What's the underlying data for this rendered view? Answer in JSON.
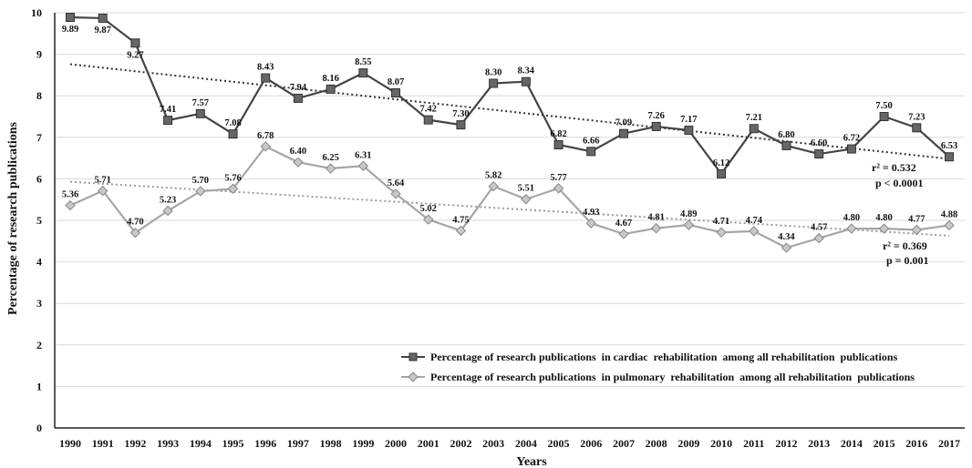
{
  "chart_data": {
    "type": "line",
    "xlabel": "Years",
    "ylabel": "Percentage of research publications",
    "ylim": [
      0,
      10
    ],
    "yticks": [
      "0",
      "1",
      "2",
      "3",
      "4",
      "5",
      "6",
      "7",
      "8",
      "9",
      "10"
    ],
    "grid": "horizontal",
    "legend_position": "bottom-right",
    "x": [
      "1990",
      "1991",
      "1992",
      "1993",
      "1994",
      "1995",
      "1996",
      "1997",
      "1998",
      "1999",
      "2000",
      "2001",
      "2002",
      "2003",
      "2004",
      "2005",
      "2006",
      "2007",
      "2008",
      "2009",
      "2010",
      "2011",
      "2012",
      "2013",
      "2014",
      "2015",
      "2016",
      "2017"
    ],
    "series": [
      {
        "name": "Percentage of research publications  in cardiac  rehabilitation  among all rehabilitation  publications",
        "color": "#444444",
        "marker": "square",
        "values": [
          9.89,
          9.87,
          9.27,
          7.41,
          7.57,
          7.08,
          8.43,
          7.94,
          8.16,
          8.55,
          8.07,
          7.42,
          7.3,
          8.3,
          8.34,
          6.82,
          6.66,
          7.09,
          7.26,
          7.17,
          6.12,
          7.21,
          6.8,
          6.6,
          6.72,
          7.5,
          7.23,
          6.53
        ],
        "labels": [
          "9.89",
          "9.87",
          "9.27",
          "7.41",
          "7.57",
          "7.08",
          "8.43",
          "7.94",
          "8.16",
          "8.55",
          "8.07",
          "7.42",
          "7.30",
          "8.30",
          "8.34",
          "6.82",
          "6.66",
          "7.09",
          "7.26",
          "7.17",
          "6.12",
          "7.21",
          "6.80",
          "6.60",
          "6.72",
          "7.50",
          "7.23",
          "6.53"
        ],
        "trend": [
          8.76,
          6.48
        ],
        "r2": "r² = 0.532",
        "p": "p < 0.0001"
      },
      {
        "name": "Percentage of research publications  in pulmonary  rehabilitation  among all rehabilitation  publications",
        "color": "#a6a6a6",
        "marker": "diamond",
        "values": [
          5.36,
          5.71,
          4.7,
          5.23,
          5.7,
          5.76,
          6.78,
          6.4,
          6.25,
          6.31,
          5.64,
          5.02,
          4.75,
          5.82,
          5.51,
          5.77,
          4.93,
          4.67,
          4.81,
          4.89,
          4.71,
          4.74,
          4.34,
          4.57,
          4.8,
          4.8,
          4.77,
          4.88
        ],
        "labels": [
          "5.36",
          "5.71",
          "4.70",
          "5.23",
          "5.70",
          "5.76",
          "6.78",
          "6.40",
          "6.25",
          "6.31",
          "5.64",
          "5.02",
          "4.75",
          "5.82",
          "5.51",
          "5.77",
          "4.93",
          "4.67",
          "4.81",
          "4.89",
          "4.71",
          "4.74",
          "4.34",
          "4.57",
          "4.80",
          "4.80",
          "4.77",
          "4.88"
        ],
        "trend": [
          5.93,
          4.63
        ],
        "r2": "r² = 0.369",
        "p": "p = 0.001"
      }
    ]
  }
}
